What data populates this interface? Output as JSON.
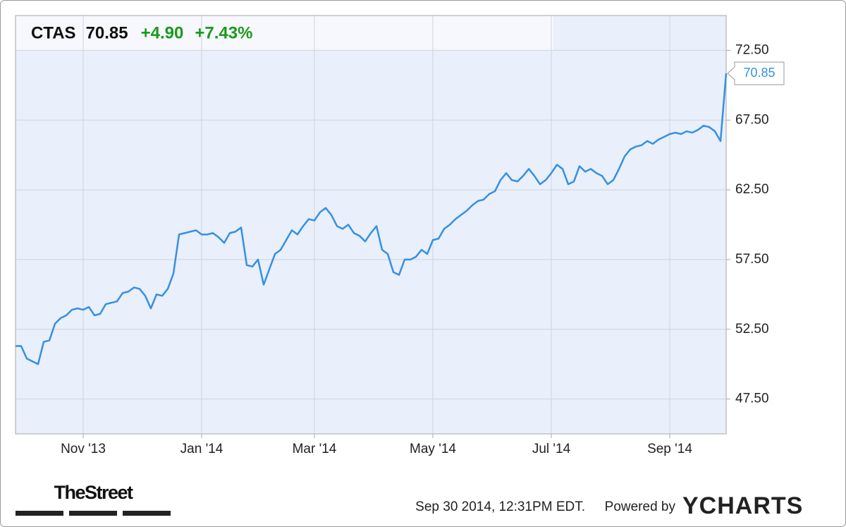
{
  "chart_data": {
    "type": "line",
    "symbol": "CTAS",
    "price": "70.85",
    "change": "+4.90",
    "change_pct": "+7.43%",
    "series": [
      {
        "color": "#3590e2",
        "values": [
          51.3,
          51.3,
          50.4,
          50.2,
          50.0,
          51.6,
          51.7,
          52.9,
          53.3,
          53.5,
          53.9,
          54.0,
          53.9,
          54.1,
          53.5,
          53.6,
          54.3,
          54.4,
          54.5,
          55.1,
          55.2,
          55.5,
          55.4,
          54.9,
          54.0,
          55.0,
          54.9,
          55.4,
          56.5,
          59.3,
          59.4,
          59.5,
          59.6,
          59.3,
          59.3,
          59.4,
          59.1,
          58.7,
          59.4,
          59.5,
          59.8,
          57.1,
          57.0,
          57.5,
          55.7,
          56.8,
          57.9,
          58.2,
          58.9,
          59.6,
          59.3,
          59.9,
          60.4,
          60.3,
          60.9,
          61.2,
          60.7,
          59.9,
          59.7,
          60.0,
          59.4,
          59.2,
          58.8,
          59.4,
          59.9,
          58.2,
          57.9,
          56.6,
          56.4,
          57.5,
          57.5,
          57.7,
          58.2,
          57.9,
          58.9,
          59.0,
          59.7,
          60.0,
          60.4,
          60.7,
          61.0,
          61.4,
          61.7,
          61.8,
          62.2,
          62.4,
          63.2,
          63.7,
          63.2,
          63.1,
          63.5,
          64.0,
          63.5,
          62.9,
          63.2,
          63.7,
          64.3,
          64.0,
          62.9,
          63.1,
          64.2,
          63.8,
          64.0,
          63.7,
          63.5,
          62.9,
          63.2,
          64.0,
          64.9,
          65.4,
          65.6,
          65.7,
          66.0,
          65.8,
          66.1,
          66.3,
          66.5,
          66.6,
          66.5,
          66.7,
          66.6,
          66.8,
          67.1,
          67.0,
          66.7,
          66.0,
          70.85
        ]
      }
    ],
    "xlim": [
      0,
      126
    ],
    "xticks": [
      {
        "value": 12,
        "label": "Nov '13"
      },
      {
        "value": 33,
        "label": "Jan '14"
      },
      {
        "value": 53,
        "label": "Mar '14"
      },
      {
        "value": 74,
        "label": "May '14"
      },
      {
        "value": 95,
        "label": "Jul '14"
      },
      {
        "value": 116,
        "label": "Sep '14"
      }
    ],
    "ylim": [
      45,
      75
    ],
    "yticks": [
      {
        "value": 47.5,
        "label": "47.50"
      },
      {
        "value": 52.5,
        "label": "52.50"
      },
      {
        "value": 57.5,
        "label": "57.50"
      },
      {
        "value": 62.5,
        "label": "62.50"
      },
      {
        "value": 67.5,
        "label": "67.50"
      },
      {
        "value": 72.5,
        "label": "72.50"
      }
    ],
    "grid": true,
    "timestamp": "Sep 30 2014, 12:31PM EDT.",
    "powered_by": "Powered by",
    "brand": "YCHARTS",
    "logo": "TheStreet"
  }
}
